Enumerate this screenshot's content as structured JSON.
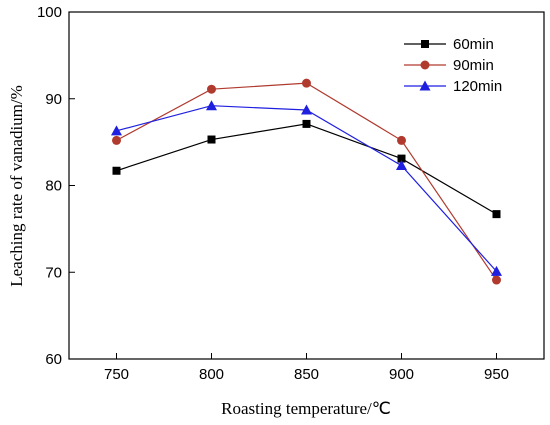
{
  "chart_data": {
    "type": "line",
    "x": [
      750,
      800,
      850,
      900,
      950
    ],
    "xlabel": "Roasting temperature/℃",
    "ylabel": "Leaching rate of vanadium/%",
    "xlim": [
      725,
      975
    ],
    "ylim": [
      60,
      100
    ],
    "xticks": [
      750,
      800,
      850,
      900,
      950
    ],
    "yticks": [
      60,
      70,
      80,
      90,
      100
    ],
    "grid": false,
    "legend_position": "top-right",
    "series": [
      {
        "name": "60min",
        "color": "#000000",
        "marker": "square",
        "values": [
          81.7,
          85.3,
          87.1,
          83.1,
          76.7
        ]
      },
      {
        "name": "90min",
        "color": "#b03a2e",
        "marker": "circle",
        "values": [
          85.2,
          91.1,
          91.8,
          85.2,
          69.1
        ]
      },
      {
        "name": "120min",
        "color": "#1f1fe0",
        "marker": "triangle",
        "values": [
          86.3,
          89.2,
          88.7,
          82.3,
          70.1
        ]
      }
    ]
  }
}
